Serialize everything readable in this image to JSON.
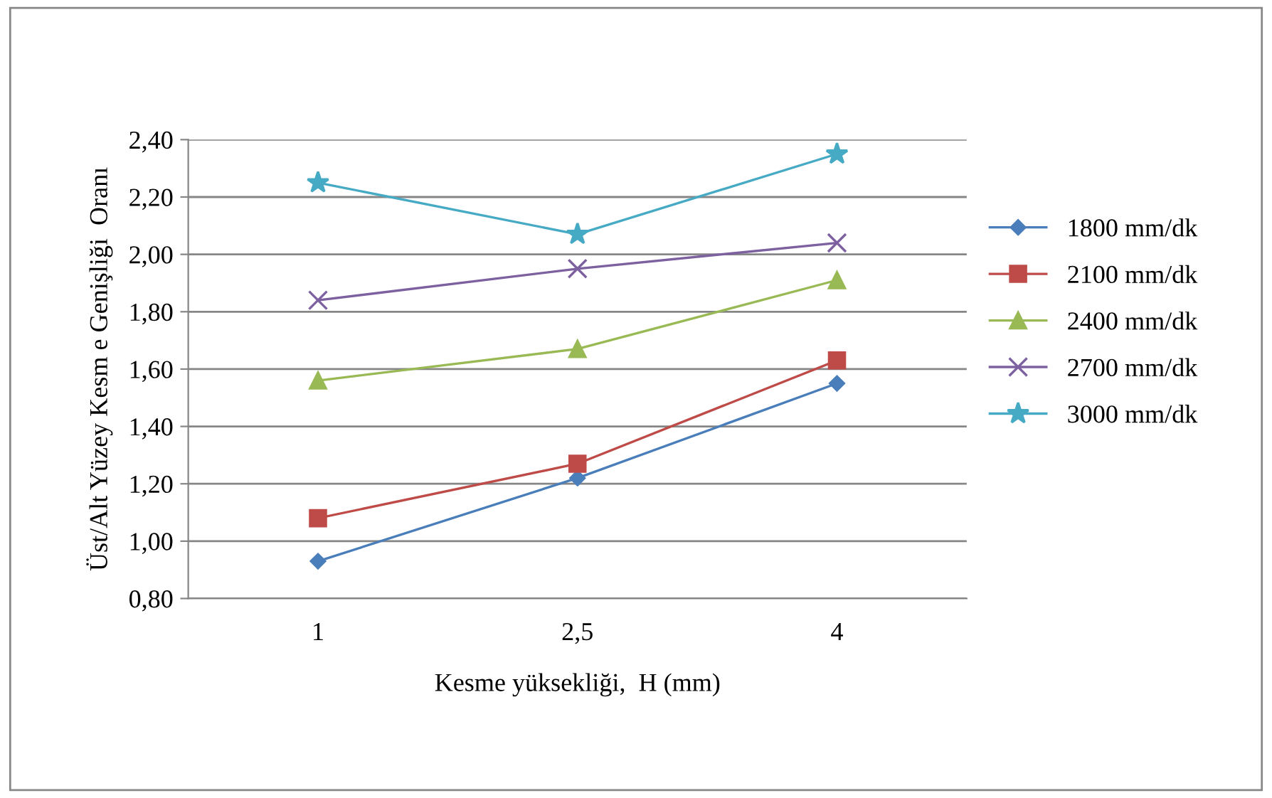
{
  "chart_data": {
    "type": "line",
    "xlabel": "Kesme yüksekliği,  H (mm)",
    "ylabel": "Üst/Alt Yüzey Kesm e Genişliği  Oranı",
    "categories": [
      "1",
      "2,5",
      "4"
    ],
    "series": [
      {
        "name": "1800 mm/dk",
        "color": "#4a7ebb",
        "marker": "diamond",
        "values": [
          0.93,
          1.22,
          1.55
        ]
      },
      {
        "name": "2100 mm/dk",
        "color": "#be4b48",
        "marker": "square",
        "values": [
          1.08,
          1.27,
          1.63
        ]
      },
      {
        "name": "2400 mm/dk",
        "color": "#98b954",
        "marker": "triangle",
        "values": [
          1.56,
          1.67,
          1.91
        ]
      },
      {
        "name": "2700 mm/dk",
        "color": "#7d60a0",
        "marker": "cross",
        "values": [
          1.84,
          1.95,
          2.04
        ]
      },
      {
        "name": "3000 mm/dk",
        "color": "#46aac5",
        "marker": "star",
        "values": [
          2.25,
          2.07,
          2.35
        ]
      }
    ],
    "ylim": [
      0.8,
      2.4
    ],
    "yticks": [
      {
        "value": 0.8,
        "label": "0,80"
      },
      {
        "value": 1.0,
        "label": "1,00"
      },
      {
        "value": 1.2,
        "label": "1,20"
      },
      {
        "value": 1.4,
        "label": "1,40"
      },
      {
        "value": 1.6,
        "label": "1,60"
      },
      {
        "value": 1.8,
        "label": "1,80"
      },
      {
        "value": 2.0,
        "label": "2,00"
      },
      {
        "value": 2.2,
        "label": "2,20"
      },
      {
        "value": 2.4,
        "label": "2,40"
      }
    ],
    "grid": "y",
    "legend": "right"
  }
}
